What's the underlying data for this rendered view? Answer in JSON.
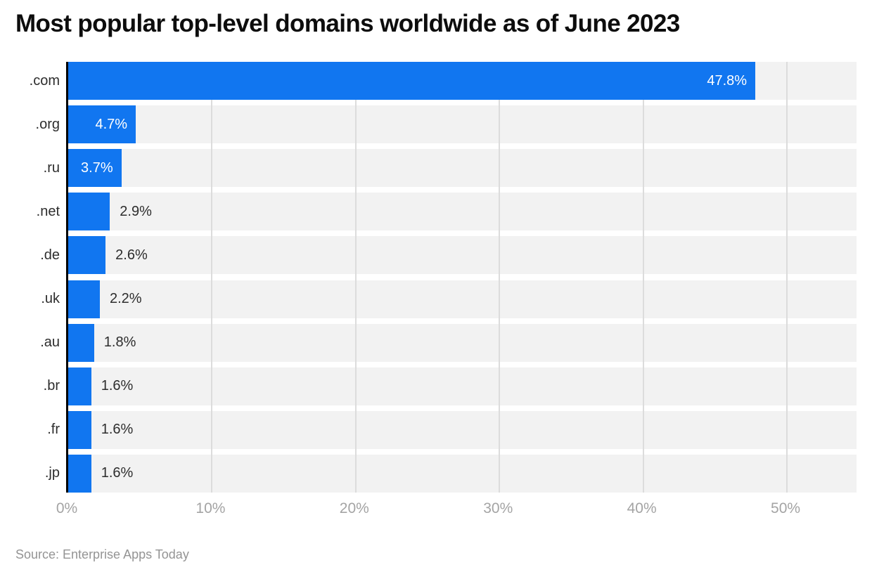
{
  "title": "Most popular top-level domains worldwide as of June 2023",
  "source": "Source: Enterprise Apps Today",
  "chart_data": {
    "type": "bar",
    "orientation": "horizontal",
    "title": "Most popular top-level domains worldwide as of June 2023",
    "categories": [
      ".com",
      ".org",
      ".ru",
      ".net",
      ".de",
      ".uk",
      ".au",
      ".br",
      ".fr",
      ".jp"
    ],
    "values": [
      47.8,
      4.7,
      3.7,
      2.9,
      2.6,
      2.2,
      1.8,
      1.6,
      1.6,
      1.6
    ],
    "value_labels": [
      "47.8%",
      "4.7%",
      "3.7%",
      "2.9%",
      "2.6%",
      "2.2%",
      "1.8%",
      "1.6%",
      "1.6%",
      "1.6%"
    ],
    "label_inside": [
      true,
      true,
      true,
      false,
      false,
      false,
      false,
      false,
      false,
      false
    ],
    "xlabel": "",
    "ylabel": "",
    "x_ticks": [
      "0%",
      "10%",
      "20%",
      "30%",
      "40%",
      "50%"
    ],
    "x_tick_values": [
      0,
      10,
      20,
      30,
      40,
      50
    ],
    "xlim": [
      0,
      54.84
    ],
    "grid": true,
    "legend": false,
    "colors": {
      "bar": "#1176f0",
      "track": "#f2f2f2",
      "gridline": "#dcdcdc",
      "axis_line": "#000000",
      "title_text": "#0d0d0d",
      "category_text": "#2d2d2d",
      "value_text_inside": "#ffffff",
      "value_text_outside": "#2d2d2d",
      "tick_text": "#a4a4a4",
      "source_text": "#949494"
    }
  }
}
